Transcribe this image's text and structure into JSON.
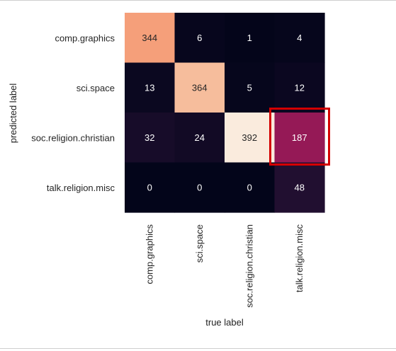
{
  "chart_data": {
    "type": "heatmap",
    "xlabel": "true label",
    "ylabel": "predicted label",
    "x_categories": [
      "comp.graphics",
      "sci.space",
      "soc.religion.christian",
      "talk.religion.misc"
    ],
    "y_categories": [
      "comp.graphics",
      "sci.space",
      "soc.religion.christian",
      "talk.religion.misc"
    ],
    "values": [
      [
        344,
        6,
        1,
        4
      ],
      [
        13,
        364,
        5,
        12
      ],
      [
        32,
        24,
        392,
        187
      ],
      [
        0,
        0,
        0,
        48
      ]
    ],
    "colorbar": false,
    "annotations": "cell counts",
    "highlight": {
      "row": 2,
      "col": 3,
      "color": "#d40000"
    }
  }
}
